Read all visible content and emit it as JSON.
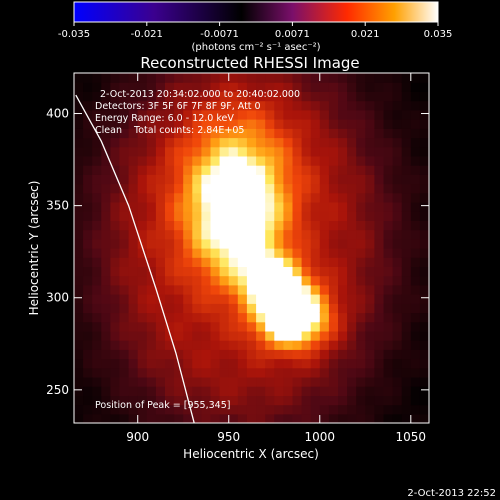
{
  "chart_data": {
    "type": "heatmap",
    "title": "Reconstructed RHESSI Image",
    "xlabel": "Heliocentric X (arcsec)",
    "ylabel": "Heliocentric Y (arcsec)",
    "xlim": [
      865,
      1060
    ],
    "ylim": [
      232,
      422
    ],
    "x_ticks": [
      900,
      950,
      1000,
      1050
    ],
    "y_ticks": [
      250,
      300,
      350,
      400
    ],
    "colorbar": {
      "range": [
        -0.035,
        0.035
      ],
      "ticks": [
        "-0.035",
        "-0.021",
        "-0.0071",
        "0.0071",
        "0.021",
        "0.035"
      ],
      "unit_label": "(photons cm⁻² s⁻¹ asec⁻²)",
      "colors": [
        "#0000ff",
        "#3b008f",
        "#000000",
        "#7a0f6a",
        "#ff2a00",
        "#ffa000",
        "#ffffff"
      ]
    },
    "annotations": {
      "time_range": "2-Oct-2013 20:34:02.000 to 20:40:02.000",
      "detectors": "Detectors: 3F 5F 6F 7F 8F 9F, Att 0",
      "energy": "Energy Range: 6.0 - 12.0 keV",
      "clean": "Clean    Total counts: 2.84E+05",
      "peak": "Position of Peak = [955,345]"
    },
    "sources": [
      {
        "x": 955,
        "y": 345,
        "rx": 22,
        "ry": 32,
        "peak": 1.0
      },
      {
        "x": 985,
        "y": 290,
        "rx": 14,
        "ry": 12,
        "peak": 0.82
      },
      {
        "x": 975,
        "y": 310,
        "rx": 12,
        "ry": 10,
        "peak": 0.45
      }
    ],
    "background_level": 0.35,
    "limb_curve": [
      [
        866,
        410
      ],
      [
        880,
        385
      ],
      [
        895,
        350
      ],
      [
        910,
        305
      ],
      [
        921,
        270
      ],
      [
        931,
        232
      ]
    ]
  },
  "footer_date": "2-Oct-2013 22:52"
}
